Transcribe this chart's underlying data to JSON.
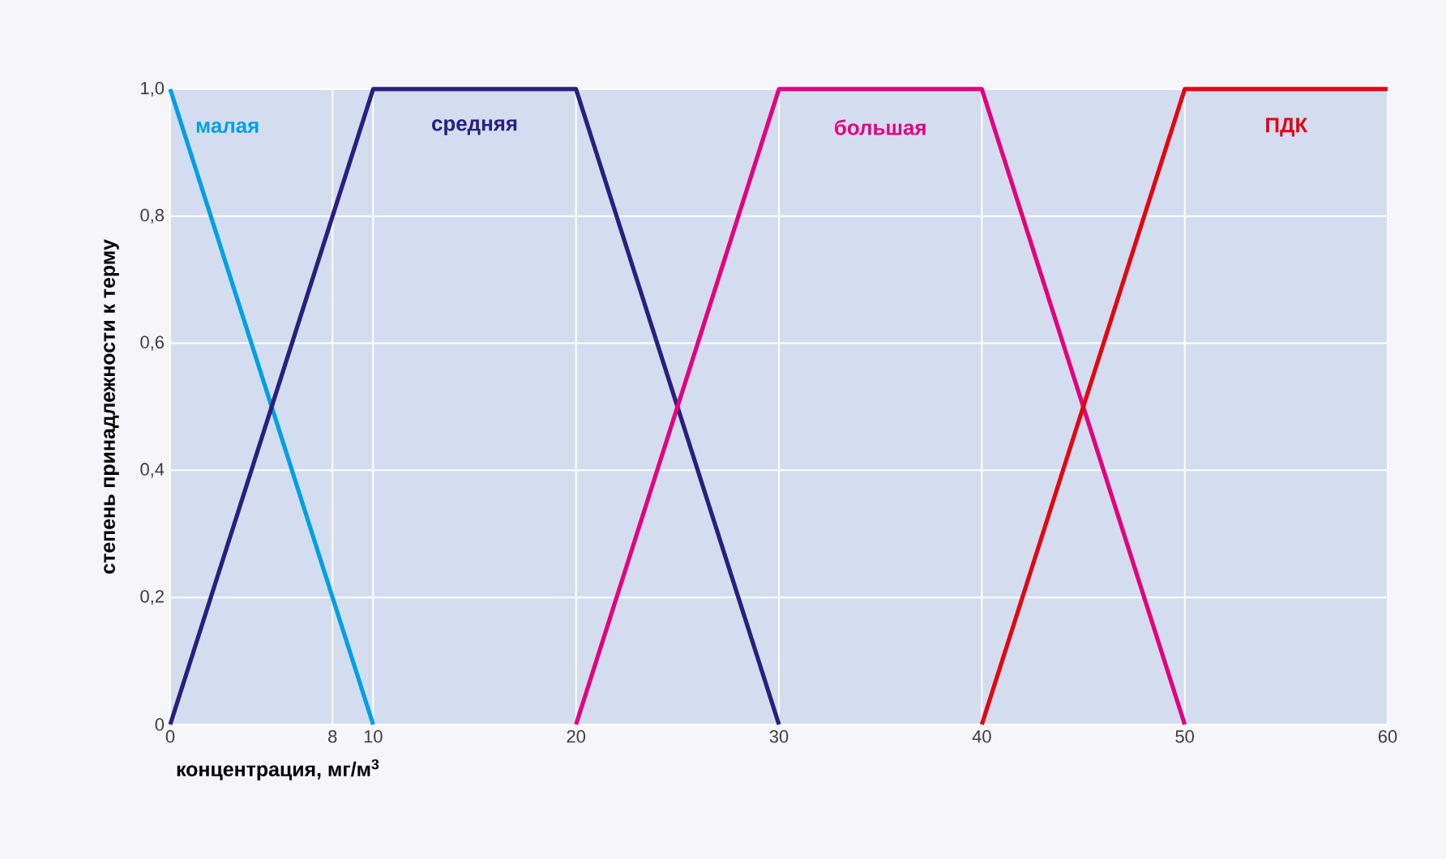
{
  "chart_data": {
    "type": "line",
    "xlabel": "концентрация, мг/м$^{3}$",
    "ylabel": "степень принадлежности к терму",
    "xlim": [
      0,
      60
    ],
    "ylim": [
      0,
      1
    ],
    "xticks": [
      0,
      8,
      10,
      20,
      30,
      40,
      50,
      60
    ],
    "yticks": [
      0,
      {
        "value": 0.2,
        "label": "0,2"
      },
      {
        "value": 0.4,
        "label": "0,4"
      },
      {
        "value": 0.6,
        "label": "0,6"
      },
      {
        "value": 0.8,
        "label": "0,8"
      },
      {
        "value": 1,
        "label": "1,0"
      }
    ],
    "grid": true,
    "legend": false,
    "marker": "none",
    "line_style": "solid",
    "series": [
      {
        "name": "малая",
        "color": "#00a0e3",
        "x": [
          0,
          10
        ],
        "values": [
          1,
          0
        ]
      },
      {
        "name": "средняя",
        "color": "#2a1f7e",
        "x": [
          0,
          10,
          20,
          30
        ],
        "values": [
          0,
          1,
          1,
          0
        ]
      },
      {
        "name": "большая",
        "color": "#e4007f",
        "x": [
          20,
          30,
          40,
          50
        ],
        "values": [
          0,
          1,
          1,
          0
        ]
      },
      {
        "name": "ПДК",
        "color": "#e30613",
        "x": [
          40,
          50,
          60
        ],
        "values": [
          0,
          1,
          1
        ]
      }
    ]
  }
}
